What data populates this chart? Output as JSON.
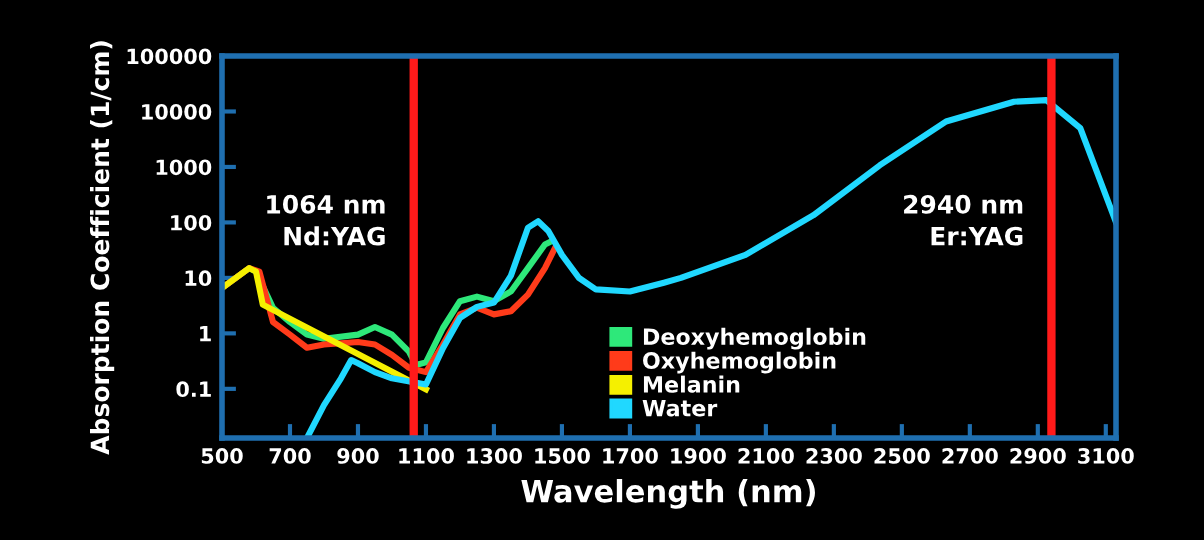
{
  "chart_data": {
    "type": "line",
    "xlabel": "Wavelength (nm)",
    "ylabel": "Absorption Coefficient (1/cm)",
    "log": "y",
    "xlim": [
      500,
      3130
    ],
    "xticks": [
      500,
      700,
      900,
      1100,
      1300,
      1500,
      1700,
      1900,
      2100,
      2300,
      2500,
      2700,
      2900,
      3100
    ],
    "ylim": [
      0.013,
      100000
    ],
    "yticks": [
      0.1,
      1,
      10,
      100,
      1000,
      10000,
      100000
    ],
    "grid": false,
    "legend": "bottom",
    "line_style": "solid",
    "marker": "none",
    "series": [
      {
        "name": "Deoxyhemoglobin",
        "color": "#2ee87a",
        "x": [
          500,
          580,
          600,
          650,
          700,
          750,
          800,
          900,
          950,
          1000,
          1050,
          1070,
          1100,
          1150,
          1200,
          1250,
          1300,
          1350,
          1400,
          1450,
          1470
        ],
        "values": [
          6.6,
          15,
          13,
          2.9,
          1.6,
          0.95,
          0.8,
          0.95,
          1.3,
          0.95,
          0.47,
          0.27,
          0.3,
          1.25,
          3.8,
          4.6,
          3.8,
          5.7,
          15,
          40,
          46
        ]
      },
      {
        "name": "Oxyhemoglobin",
        "color": "#ff3b1a",
        "x": [
          500,
          580,
          610,
          650,
          700,
          750,
          800,
          900,
          950,
          1000,
          1050,
          1100,
          1150,
          1200,
          1250,
          1300,
          1350,
          1400,
          1450,
          1480
        ],
        "values": [
          6.6,
          15,
          13,
          1.6,
          0.95,
          0.55,
          0.63,
          0.7,
          0.63,
          0.41,
          0.24,
          0.2,
          0.63,
          2.2,
          2.9,
          2.2,
          2.5,
          5,
          15,
          35
        ]
      },
      {
        "name": "Melanin",
        "color": "#f5f000",
        "x": [
          500,
          580,
          600,
          620,
          1100
        ],
        "values": [
          6.6,
          15,
          13,
          3.3,
          0.098
        ]
      },
      {
        "name": "Water",
        "color": "#20d8ff",
        "x": [
          750,
          800,
          850,
          880,
          900,
          950,
          1000,
          1100,
          1150,
          1200,
          1250,
          1300,
          1350,
          1400,
          1430,
          1460,
          1500,
          1550,
          1600,
          1700,
          1800,
          1850,
          2040,
          2240,
          2435,
          2630,
          2830,
          2925,
          3025,
          3130
        ],
        "values": [
          0.013,
          0.051,
          0.155,
          0.33,
          0.29,
          0.2,
          0.155,
          0.12,
          0.54,
          1.9,
          3,
          3.6,
          11,
          80,
          105,
          70,
          26,
          10,
          6.2,
          5.7,
          8.2,
          10,
          26,
          135,
          1070,
          6600,
          15000,
          16000,
          5000,
          100
        ]
      }
    ],
    "ref_lines": [
      {
        "axis": "x",
        "value": 1064,
        "label": "1064 nm\nNd:YAG",
        "color": "#ff1a1a",
        "line_style": "solid"
      },
      {
        "axis": "x",
        "value": 2940,
        "label": "2940 nm\nEr:YAG",
        "color": "#ff1a1a",
        "line_style": "solid"
      }
    ]
  }
}
